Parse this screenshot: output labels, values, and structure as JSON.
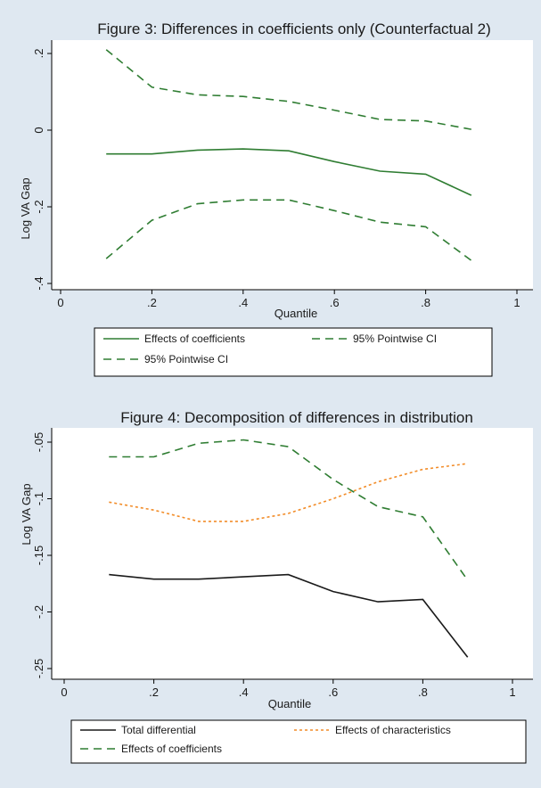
{
  "colors": {
    "background": "#dfe8f1",
    "plot_area": "#ffffff",
    "green": "#2f7d32",
    "orange": "#f28c28",
    "black": "#1a1a1a"
  },
  "chart_data": [
    {
      "type": "line",
      "title": "Figure 3: Differences in coefficients only (Counterfactual 2)",
      "xlabel": "Quantile",
      "ylabel": "Log VA Gap",
      "xlim": [
        0,
        1
      ],
      "ylim": [
        -0.4,
        0.2
      ],
      "xticks": [
        {
          "v": 0,
          "label": "0"
        },
        {
          "v": 0.2,
          "label": ".2"
        },
        {
          "v": 0.4,
          "label": ".4"
        },
        {
          "v": 0.6,
          "label": ".6"
        },
        {
          "v": 0.8,
          "label": ".8"
        },
        {
          "v": 1,
          "label": "1"
        }
      ],
      "yticks": [
        {
          "v": 0.2,
          "label": ".2"
        },
        {
          "v": 0,
          "label": "0"
        },
        {
          "v": -0.2,
          "label": "-.2"
        },
        {
          "v": -0.4,
          "label": "-.4"
        }
      ],
      "grid": false,
      "legend_position": "bottom",
      "x": [
        0.1,
        0.2,
        0.3,
        0.4,
        0.5,
        0.6,
        0.7,
        0.8,
        0.9
      ],
      "series": [
        {
          "name": "Effects of coefficients",
          "style": "solid",
          "color": "#2f7d32",
          "values": [
            -0.062,
            -0.062,
            -0.052,
            -0.049,
            -0.054,
            -0.082,
            -0.107,
            -0.115,
            -0.17
          ]
        },
        {
          "name": "95% Pointwise CI",
          "style": "dashed",
          "color": "#2f7d32",
          "values": [
            0.21,
            0.112,
            0.092,
            0.088,
            0.075,
            0.052,
            0.028,
            0.024,
            0.002
          ]
        },
        {
          "name": "95% Pointwise CI",
          "style": "dashed",
          "color": "#2f7d32",
          "values": [
            -0.335,
            -0.235,
            -0.192,
            -0.182,
            -0.182,
            -0.21,
            -0.24,
            -0.252,
            -0.34
          ]
        }
      ]
    },
    {
      "type": "line",
      "title": "Figure 4: Decomposition of differences in distribution",
      "xlabel": "Quantile",
      "ylabel": "Log VA Gap",
      "xlim": [
        0,
        1
      ],
      "ylim": [
        -0.25,
        -0.05
      ],
      "xticks": [
        {
          "v": 0,
          "label": "0"
        },
        {
          "v": 0.2,
          "label": ".2"
        },
        {
          "v": 0.4,
          "label": ".4"
        },
        {
          "v": 0.6,
          "label": ".6"
        },
        {
          "v": 0.8,
          "label": ".8"
        },
        {
          "v": 1,
          "label": "1"
        }
      ],
      "yticks": [
        {
          "v": -0.05,
          "label": "-.05"
        },
        {
          "v": -0.1,
          "label": "-.1"
        },
        {
          "v": -0.15,
          "label": "-.15"
        },
        {
          "v": -0.2,
          "label": "-.2"
        },
        {
          "v": -0.25,
          "label": "-.25"
        }
      ],
      "grid": false,
      "legend_position": "bottom",
      "x": [
        0.1,
        0.2,
        0.3,
        0.4,
        0.5,
        0.6,
        0.7,
        0.8,
        0.9
      ],
      "series": [
        {
          "name": "Total differential",
          "style": "solid",
          "color": "#1a1a1a",
          "values": [
            -0.167,
            -0.171,
            -0.171,
            -0.169,
            -0.167,
            -0.182,
            -0.191,
            -0.189,
            -0.24
          ]
        },
        {
          "name": "Effects of characteristics",
          "style": "dotted",
          "color": "#f28c28",
          "values": [
            -0.103,
            -0.11,
            -0.12,
            -0.12,
            -0.113,
            -0.1,
            -0.085,
            -0.074,
            -0.069
          ]
        },
        {
          "name": "Effects of coefficients",
          "style": "dashed",
          "color": "#2f7d32",
          "values": [
            -0.063,
            -0.063,
            -0.051,
            -0.048,
            -0.054,
            -0.083,
            -0.107,
            -0.116,
            -0.172
          ]
        }
      ]
    }
  ]
}
